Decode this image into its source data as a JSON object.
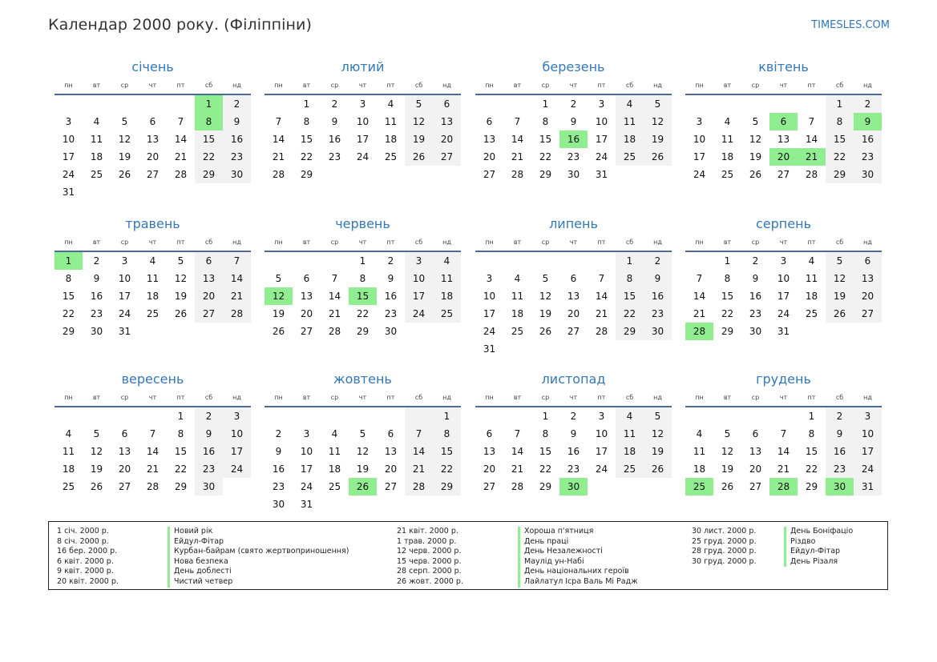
{
  "header": {
    "title": "Календар 2000 року. (Філіппіни)",
    "site": "TIMESLES.COM"
  },
  "weekdays": [
    "пн",
    "вт",
    "ср",
    "чт",
    "пт",
    "сб",
    "нд"
  ],
  "months": [
    {
      "name": "січень",
      "start": 5,
      "days": 31,
      "holidays": [
        1,
        8
      ]
    },
    {
      "name": "лютий",
      "start": 1,
      "days": 29,
      "holidays": []
    },
    {
      "name": "березень",
      "start": 2,
      "days": 31,
      "holidays": [
        16
      ]
    },
    {
      "name": "квітень",
      "start": 5,
      "days": 30,
      "holidays": [
        6,
        9,
        20,
        21
      ]
    },
    {
      "name": "травень",
      "start": 0,
      "days": 31,
      "holidays": [
        1
      ]
    },
    {
      "name": "червень",
      "start": 3,
      "days": 30,
      "holidays": [
        12,
        15
      ]
    },
    {
      "name": "липень",
      "start": 5,
      "days": 31,
      "holidays": []
    },
    {
      "name": "серпень",
      "start": 1,
      "days": 31,
      "holidays": [
        28
      ]
    },
    {
      "name": "вересень",
      "start": 4,
      "days": 30,
      "holidays": []
    },
    {
      "name": "жовтень",
      "start": 6,
      "days": 31,
      "holidays": [
        26
      ]
    },
    {
      "name": "листопад",
      "start": 2,
      "days": 30,
      "holidays": [
        30
      ]
    },
    {
      "name": "грудень",
      "start": 4,
      "days": 31,
      "holidays": [
        25,
        28,
        30
      ]
    }
  ],
  "legend": [
    [
      {
        "date": "1 січ. 2000 р.",
        "name": "Новий рік"
      },
      {
        "date": "8 січ. 2000 р.",
        "name": "Ейдул-Фітар"
      },
      {
        "date": "16 бер. 2000 р.",
        "name": "Курбан-байрам (свято жертвоприношення)"
      },
      {
        "date": "6 квіт. 2000 р.",
        "name": "Нова безпека"
      },
      {
        "date": "9 квіт. 2000 р.",
        "name": "День доблесті"
      },
      {
        "date": "20 квіт. 2000 р.",
        "name": "Чистий четвер"
      }
    ],
    [
      {
        "date": "21 квіт. 2000 р.",
        "name": "Хороша п'ятниця"
      },
      {
        "date": "1 трав. 2000 р.",
        "name": "День праці"
      },
      {
        "date": "12 черв. 2000 р.",
        "name": "День Незалежності"
      },
      {
        "date": "15 черв. 2000 р.",
        "name": "Маулід ун-Набі"
      },
      {
        "date": "28 серп. 2000 р.",
        "name": "День національних героїв"
      },
      {
        "date": "26 жовт. 2000 р.",
        "name": "Лайлатул Ісра Валь Мі Радж"
      }
    ],
    [
      {
        "date": "30 лист. 2000 р.",
        "name": "День Боніфаціо"
      },
      {
        "date": "25 груд. 2000 р.",
        "name": "Різдво"
      },
      {
        "date": "28 груд. 2000 р.",
        "name": "Ейдул-Фітар"
      },
      {
        "date": "30 груд. 2000 р.",
        "name": "День Різаля"
      }
    ]
  ],
  "colors": {
    "accent": "#3378b8",
    "holiday": "#90ee90",
    "weekend": "#f2f2f2",
    "rule": "#4a6c9a"
  }
}
